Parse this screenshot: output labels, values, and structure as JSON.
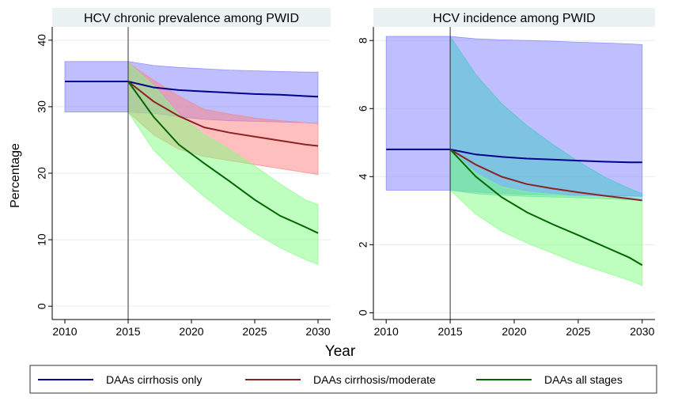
{
  "chart_data": [
    {
      "type": "line",
      "title": "HCV chronic prevalence among PWID",
      "ylabel": "Percentage",
      "xlabel": "Year",
      "xlim": [
        2009,
        2031
      ],
      "ylim": [
        -2,
        42
      ],
      "xticks": [
        2010,
        2015,
        2020,
        2025,
        2030
      ],
      "yticks": [
        0,
        10,
        20,
        30,
        40
      ],
      "vline": 2015,
      "series": [
        {
          "name": "DAAs cirrhosis only",
          "color": "#00008b",
          "band_color": "#8080ff",
          "x": [
            2010,
            2015,
            2017,
            2019,
            2021,
            2023,
            2025,
            2027,
            2029,
            2030
          ],
          "values": [
            33.8,
            33.8,
            32.9,
            32.5,
            32.3,
            32.1,
            31.9,
            31.8,
            31.6,
            31.5
          ],
          "lower": [
            29.2,
            29.2,
            29.0,
            28.5,
            28.1,
            27.9,
            27.8,
            27.7,
            27.6,
            27.5
          ],
          "upper": [
            36.8,
            36.8,
            36.2,
            35.9,
            35.7,
            35.5,
            35.4,
            35.3,
            35.2,
            35.2
          ]
        },
        {
          "name": "DAAs cirrhosis/moderate",
          "color": "#8b2323",
          "band_color": "#ff8080",
          "x": [
            2015,
            2017,
            2019,
            2021,
            2023,
            2025,
            2027,
            2029,
            2030
          ],
          "values": [
            33.8,
            30.8,
            28.6,
            26.9,
            26.1,
            25.5,
            24.9,
            24.3,
            24.1
          ],
          "lower": [
            29.2,
            25.8,
            23.6,
            22.5,
            21.9,
            21.3,
            20.7,
            20.1,
            19.8
          ],
          "upper": [
            36.6,
            34.0,
            31.6,
            29.6,
            28.9,
            28.3,
            27.9,
            27.6,
            27.5
          ]
        },
        {
          "name": "DAAs all stages",
          "color": "#006400",
          "band_color": "#80ff80",
          "x": [
            2015,
            2017,
            2019,
            2021,
            2023,
            2025,
            2027,
            2029,
            2030
          ],
          "values": [
            33.8,
            28.5,
            24.3,
            21.5,
            18.8,
            16.0,
            13.6,
            11.9,
            11.0
          ],
          "lower": [
            29.2,
            23.5,
            19.8,
            16.5,
            13.6,
            11.0,
            8.8,
            7.0,
            6.3
          ],
          "upper": [
            36.6,
            33.2,
            28.8,
            25.8,
            23.6,
            21.1,
            18.4,
            16.0,
            15.3
          ]
        }
      ]
    },
    {
      "type": "line",
      "title": "HCV incidence among PWID",
      "ylabel": "",
      "xlabel": "Year",
      "xlim": [
        2009,
        2031
      ],
      "ylim": [
        -0.2,
        8.4
      ],
      "xticks": [
        2010,
        2015,
        2020,
        2025,
        2030
      ],
      "yticks": [
        0,
        2,
        4,
        6,
        8
      ],
      "vline": 2015,
      "series": [
        {
          "name": "DAAs cirrhosis only",
          "color": "#00008b",
          "band_color": "#8080ff",
          "x": [
            2010,
            2015,
            2017,
            2019,
            2021,
            2023,
            2025,
            2027,
            2029,
            2030
          ],
          "values": [
            4.8,
            4.8,
            4.65,
            4.58,
            4.53,
            4.5,
            4.47,
            4.44,
            4.42,
            4.42
          ],
          "lower": [
            3.6,
            3.6,
            3.55,
            3.5,
            3.48,
            3.47,
            3.45,
            3.44,
            3.43,
            3.42
          ],
          "upper": [
            8.12,
            8.12,
            8.05,
            8.02,
            8.0,
            7.98,
            7.95,
            7.93,
            7.9,
            7.88
          ]
        },
        {
          "name": "DAAs cirrhosis/moderate",
          "color": "#8b2323",
          "band_color": "#40c8c8",
          "x": [
            2015,
            2017,
            2019,
            2021,
            2023,
            2025,
            2027,
            2029,
            2030
          ],
          "values": [
            4.8,
            4.35,
            4.0,
            3.78,
            3.65,
            3.54,
            3.44,
            3.35,
            3.3
          ],
          "lower": [
            3.6,
            3.5,
            3.45,
            3.42,
            3.4,
            3.38,
            3.35,
            3.32,
            3.3
          ],
          "upper": [
            8.12,
            7.0,
            6.15,
            5.5,
            4.95,
            4.45,
            4.0,
            3.65,
            3.5
          ]
        },
        {
          "name": "DAAs all stages",
          "color": "#006400",
          "band_color": "#80ff80",
          "x": [
            2015,
            2017,
            2019,
            2021,
            2023,
            2025,
            2027,
            2029,
            2030
          ],
          "values": [
            4.8,
            4.0,
            3.4,
            2.95,
            2.6,
            2.28,
            1.95,
            1.62,
            1.4
          ],
          "lower": [
            3.6,
            2.9,
            2.4,
            2.05,
            1.75,
            1.45,
            1.2,
            0.95,
            0.8
          ],
          "upper": [
            4.8,
            4.1,
            3.7,
            3.55,
            3.48,
            3.42,
            3.38,
            3.33,
            3.3
          ]
        }
      ]
    }
  ],
  "legend": {
    "entries": [
      {
        "label": "DAAs cirrhosis only",
        "color": "#00008b"
      },
      {
        "label": "DAAs cirrhosis/moderate",
        "color": "#8b2323"
      },
      {
        "label": "DAAs all stages",
        "color": "#006400"
      }
    ]
  }
}
